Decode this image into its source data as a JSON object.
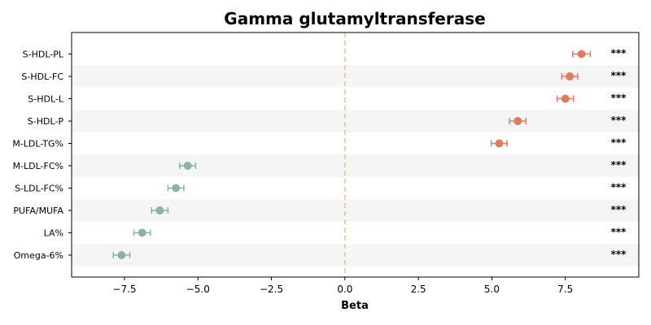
{
  "chart_data": {
    "type": "scatter",
    "title": "Gamma glutamyltransferase",
    "xlabel": "Beta",
    "ylabel": "",
    "xlim": [
      -9.3,
      10.0
    ],
    "xticks": [
      -7.5,
      -5.0,
      -2.5,
      0.0,
      2.5,
      5.0,
      7.5
    ],
    "xtick_labels": [
      "−7.5",
      "−5.0",
      "−2.5",
      "0.0",
      "2.5",
      "5.0",
      "7.5"
    ],
    "reference_line": 0,
    "grid": false,
    "categories": [
      "S-HDL-PL",
      "S-HDL-FC",
      "S-HDL-L",
      "S-HDL-P",
      "M-LDL-TG%",
      "M-LDL-FC%",
      "S-LDL-FC%",
      "PUFA/MUFA",
      "LA%",
      "Omega-6%"
    ],
    "points": [
      {
        "label": "S-HDL-PL",
        "beta": 8.05,
        "lower": 7.75,
        "upper": 8.35,
        "significance": "***"
      },
      {
        "label": "S-HDL-FC",
        "beta": 7.65,
        "lower": 7.38,
        "upper": 7.92,
        "significance": "***"
      },
      {
        "label": "S-HDL-L",
        "beta": 7.5,
        "lower": 7.22,
        "upper": 7.78,
        "significance": "***"
      },
      {
        "label": "S-HDL-P",
        "beta": 5.88,
        "lower": 5.6,
        "upper": 6.16,
        "significance": "***"
      },
      {
        "label": "M-LDL-TG%",
        "beta": 5.25,
        "lower": 4.98,
        "upper": 5.52,
        "significance": "***"
      },
      {
        "label": "M-LDL-FC%",
        "beta": -5.35,
        "lower": -5.62,
        "upper": -5.08,
        "significance": "***"
      },
      {
        "label": "S-LDL-FC%",
        "beta": -5.75,
        "lower": -6.02,
        "upper": -5.48,
        "significance": "***"
      },
      {
        "label": "PUFA/MUFA",
        "beta": -6.3,
        "lower": -6.58,
        "upper": -6.02,
        "significance": "***"
      },
      {
        "label": "LA%",
        "beta": -6.9,
        "lower": -7.18,
        "upper": -6.62,
        "significance": "***"
      },
      {
        "label": "Omega-6%",
        "beta": -7.6,
        "lower": -7.88,
        "upper": -7.32,
        "significance": "***"
      }
    ],
    "colors": {
      "positive": "#e07b5f",
      "negative": "#88b59c",
      "reference_line": "#f4c07a",
      "row_band": "#f5f5f5"
    }
  }
}
